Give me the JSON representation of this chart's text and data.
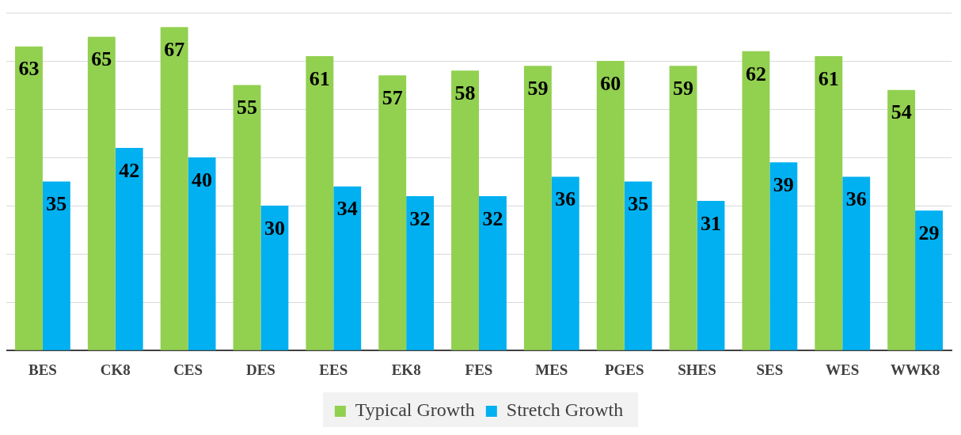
{
  "chart_data": {
    "type": "bar",
    "categories": [
      "BES",
      "CK8",
      "CES",
      "DES",
      "EES",
      "EK8",
      "FES",
      "MES",
      "PGES",
      "SHES",
      "SES",
      "WES",
      "WWK8"
    ],
    "series": [
      {
        "name": "Typical Growth",
        "color": "#92d050",
        "values": [
          63,
          65,
          67,
          55,
          61,
          57,
          58,
          59,
          60,
          59,
          62,
          61,
          54
        ]
      },
      {
        "name": "Stretch Growth",
        "color": "#00b0f0",
        "values": [
          35,
          42,
          40,
          30,
          34,
          32,
          32,
          36,
          35,
          31,
          39,
          36,
          29
        ]
      }
    ],
    "ylim": [
      0,
      70
    ],
    "yticks": [
      0,
      10,
      20,
      30,
      40,
      50,
      60,
      70
    ],
    "grid": "y",
    "tick_labels": "x",
    "legend": "bottom",
    "data_labels": true
  }
}
